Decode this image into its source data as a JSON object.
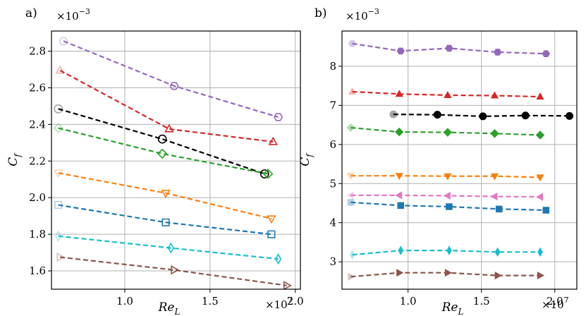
{
  "chart_data": [
    {
      "type": "line",
      "panel_label": "a)",
      "xlabel": "Re_L",
      "xlabel_main": "Re",
      "xlabel_sub": "L",
      "ylabel": "C_f",
      "ylabel_main": "C",
      "ylabel_sub": "f",
      "x_multiplier": "×10",
      "x_multiplier_exp": "7",
      "y_multiplier": "×10",
      "y_multiplier_exp": "−3",
      "xlim": [
        0.57,
        2.03
      ],
      "ylim": [
        1.5,
        2.91
      ],
      "grid": true,
      "marker_fill": "open",
      "xticks": [
        1.0,
        1.5,
        2.0
      ],
      "xtick_labels": [
        "1.0",
        "1.5",
        "2.0"
      ],
      "yticks": [
        1.6,
        1.8,
        2.0,
        2.2,
        2.4,
        2.6,
        2.8
      ],
      "ytick_labels": [
        "1.6",
        "1.8",
        "2.0",
        "2.2",
        "2.4",
        "2.6",
        "2.8"
      ],
      "series": [
        {
          "name": "purple",
          "color": "#9467bd",
          "marker": "hexagon",
          "x": [
            0.64,
            1.29,
            1.9
          ],
          "y": [
            2.855,
            2.61,
            2.44
          ]
        },
        {
          "name": "red",
          "color": "#d62728",
          "marker": "triangle-up",
          "x": [
            0.62,
            1.26,
            1.87
          ],
          "y": [
            2.695,
            2.375,
            2.305
          ]
        },
        {
          "name": "black",
          "color": "#000000",
          "marker": "circle",
          "x": [
            0.61,
            1.22,
            1.82
          ],
          "y": [
            2.485,
            2.32,
            2.13
          ]
        },
        {
          "name": "green",
          "color": "#2ca02c",
          "marker": "diamond",
          "x": [
            0.61,
            1.22,
            1.84
          ],
          "y": [
            2.38,
            2.24,
            2.13
          ]
        },
        {
          "name": "orange",
          "color": "#ff7f0e",
          "marker": "triangle-down",
          "x": [
            0.61,
            1.24,
            1.86
          ],
          "y": [
            2.135,
            2.025,
            1.885
          ]
        },
        {
          "name": "blue",
          "color": "#1f77b4",
          "marker": "square",
          "x": [
            0.61,
            1.24,
            1.86
          ],
          "y": [
            1.96,
            1.865,
            1.8
          ]
        },
        {
          "name": "cyan",
          "color": "#17becf",
          "marker": "thin-diamond",
          "x": [
            0.61,
            1.27,
            1.9
          ],
          "y": [
            1.79,
            1.725,
            1.665
          ]
        },
        {
          "name": "brown",
          "color": "#8c564b",
          "marker": "triangle-right",
          "x": [
            0.62,
            1.29,
            1.95
          ],
          "y": [
            1.675,
            1.605,
            1.52
          ]
        }
      ]
    },
    {
      "type": "line",
      "panel_label": "b)",
      "xlabel": "Re_L",
      "xlabel_main": "Re",
      "xlabel_sub": "L",
      "ylabel": "C_f",
      "ylabel_main": "C",
      "ylabel_sub": "f",
      "x_multiplier": "×10",
      "x_multiplier_exp": "7",
      "y_multiplier": "×10",
      "y_multiplier_exp": "−3",
      "xlim": [
        0.55,
        2.15
      ],
      "ylim": [
        2.3,
        8.9
      ],
      "grid": true,
      "marker_fill": "filled",
      "xticks": [
        1.0,
        1.5,
        2.0
      ],
      "xtick_labels": [
        "1.0",
        "1.5",
        "2.0"
      ],
      "yticks": [
        3,
        4,
        5,
        6,
        7,
        8
      ],
      "ytick_labels": [
        "3",
        "4",
        "5",
        "6",
        "7",
        "8"
      ],
      "series": [
        {
          "name": "purple",
          "color": "#9467bd",
          "marker": "hexagon",
          "x": [
            0.62,
            0.95,
            1.28,
            1.61,
            1.94
          ],
          "y": [
            8.58,
            8.39,
            8.46,
            8.36,
            8.32
          ]
        },
        {
          "name": "red",
          "color": "#d62728",
          "marker": "triangle-up",
          "x": [
            0.62,
            0.94,
            1.27,
            1.59,
            1.9
          ],
          "y": [
            7.35,
            7.29,
            7.26,
            7.25,
            7.22
          ]
        },
        {
          "name": "black",
          "color": "#000000",
          "marker": "circle",
          "x": [
            0.9,
            1.2,
            1.51,
            1.8,
            2.1
          ],
          "y": [
            6.77,
            6.76,
            6.72,
            6.74,
            6.73
          ]
        },
        {
          "name": "green",
          "color": "#2ca02c",
          "marker": "diamond",
          "x": [
            0.61,
            0.94,
            1.27,
            1.59,
            1.9
          ],
          "y": [
            6.43,
            6.32,
            6.31,
            6.28,
            6.24
          ]
        },
        {
          "name": "orange",
          "color": "#ff7f0e",
          "marker": "triangle-down",
          "x": [
            0.61,
            0.94,
            1.27,
            1.59,
            1.9
          ],
          "y": [
            5.2,
            5.2,
            5.19,
            5.19,
            5.16
          ]
        },
        {
          "name": "pink",
          "color": "#e377c2",
          "marker": "triangle-left",
          "x": [
            0.61,
            0.94,
            1.27,
            1.59,
            1.9
          ],
          "y": [
            4.7,
            4.7,
            4.69,
            4.67,
            4.66
          ]
        },
        {
          "name": "blue",
          "color": "#1f77b4",
          "marker": "square",
          "x": [
            0.61,
            0.95,
            1.28,
            1.62,
            1.94
          ],
          "y": [
            4.52,
            4.44,
            4.41,
            4.35,
            4.32
          ]
        },
        {
          "name": "cyan",
          "color": "#17becf",
          "marker": "thin-diamond",
          "x": [
            0.62,
            0.95,
            1.28,
            1.61,
            1.9
          ],
          "y": [
            3.18,
            3.29,
            3.29,
            3.25,
            3.25
          ]
        },
        {
          "name": "brown",
          "color": "#8c564b",
          "marker": "triangle-right",
          "x": [
            0.61,
            0.94,
            1.27,
            1.61,
            1.9
          ],
          "y": [
            2.62,
            2.72,
            2.72,
            2.65,
            2.65
          ]
        }
      ]
    }
  ]
}
